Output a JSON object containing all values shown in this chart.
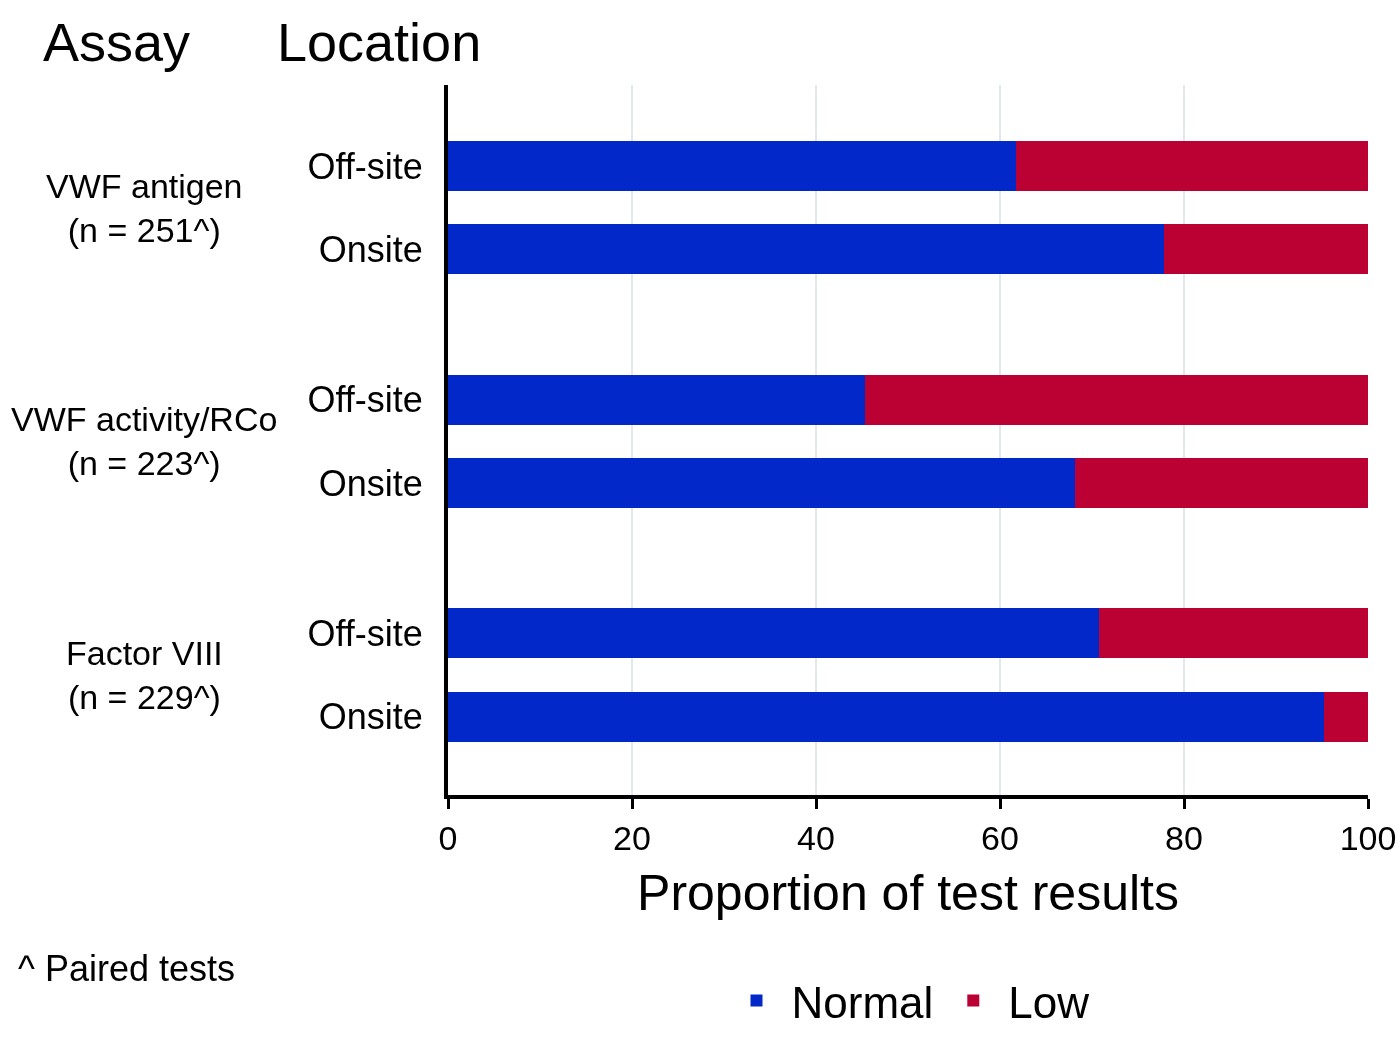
{
  "chart_data": {
    "type": "bar",
    "orientation": "horizontal",
    "stacked": true,
    "categories": [
      "Off-site",
      "Onsite",
      "Off-site",
      "Onsite",
      "Off-site",
      "Onsite"
    ],
    "series": [
      {
        "name": "Normal",
        "color": "#0328c9",
        "values": [
          61.7,
          77.8,
          45.3,
          68.2,
          70.8,
          95.2
        ]
      },
      {
        "name": "Low",
        "color": "#bb0033",
        "values": [
          38.3,
          22.2,
          54.7,
          31.8,
          29.2,
          4.8
        ]
      }
    ],
    "xlabel": "Proportion of test results",
    "xlim": [
      0,
      100
    ],
    "xticks": [
      0,
      20,
      40,
      60,
      80,
      100
    ],
    "grid": "x",
    "legend": "bottom",
    "annotations": [
      "Assay",
      "Location",
      "VWF antigen\n(n = 251^)",
      "VWF activity/RCo\n(n = 223^)",
      "Factor VIII\n(n = 229^)",
      "^ Paired tests"
    ]
  }
}
